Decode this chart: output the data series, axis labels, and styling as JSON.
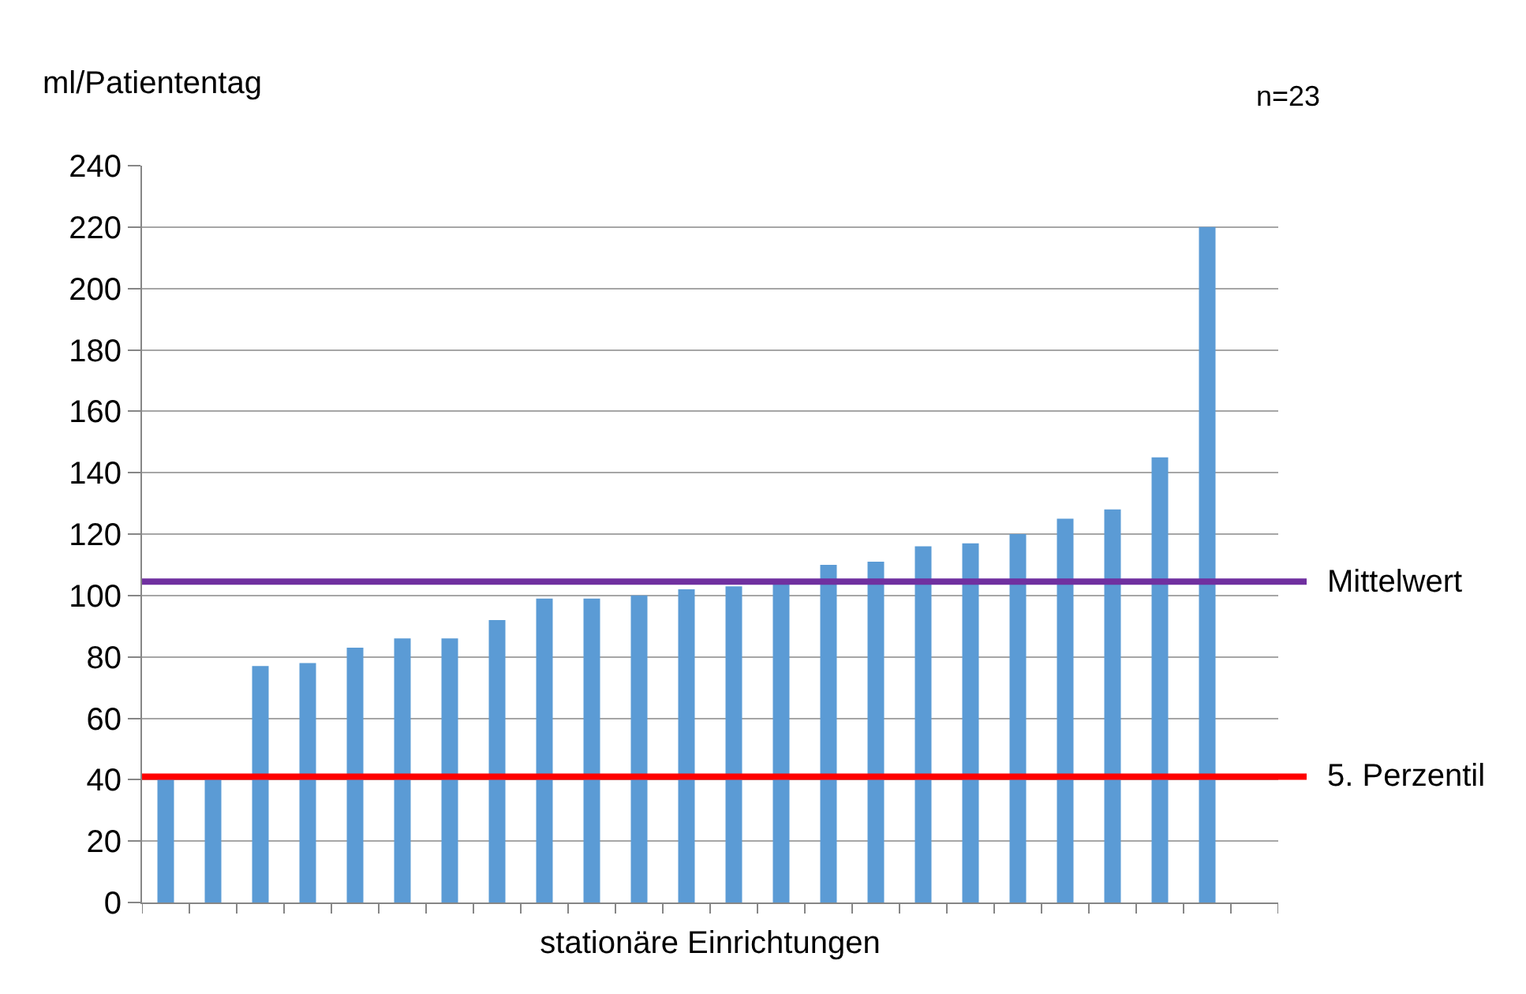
{
  "chart_data": {
    "type": "bar",
    "ylabel": "ml/Patiententag",
    "xlabel": "stationäre Einrichtungen",
    "annotations": [
      "n=23"
    ],
    "categories": [
      null,
      null,
      null,
      null,
      null,
      null,
      null,
      null,
      null,
      null,
      null,
      null,
      null,
      null,
      null,
      null,
      null,
      null,
      null,
      null,
      null,
      null,
      null,
      null
    ],
    "values": [
      41,
      41,
      77,
      78,
      83,
      86,
      86,
      92,
      99,
      99,
      100,
      102,
      103,
      104,
      110,
      111,
      116,
      117,
      120,
      125,
      128,
      145,
      220,
      null
    ],
    "color": "#5b9bd5",
    "ylim": [
      0,
      240
    ],
    "yticks": [
      0,
      20,
      40,
      60,
      80,
      100,
      120,
      140,
      160,
      180,
      200,
      220,
      240
    ],
    "grid": "y",
    "ref_lines": [
      {
        "axis": "y",
        "value": 104.5,
        "label": "Mittelwert",
        "color": "#7030a0"
      },
      {
        "axis": "y",
        "value": 41,
        "label": "5. Perzentil",
        "color": "#ff0000"
      }
    ]
  }
}
